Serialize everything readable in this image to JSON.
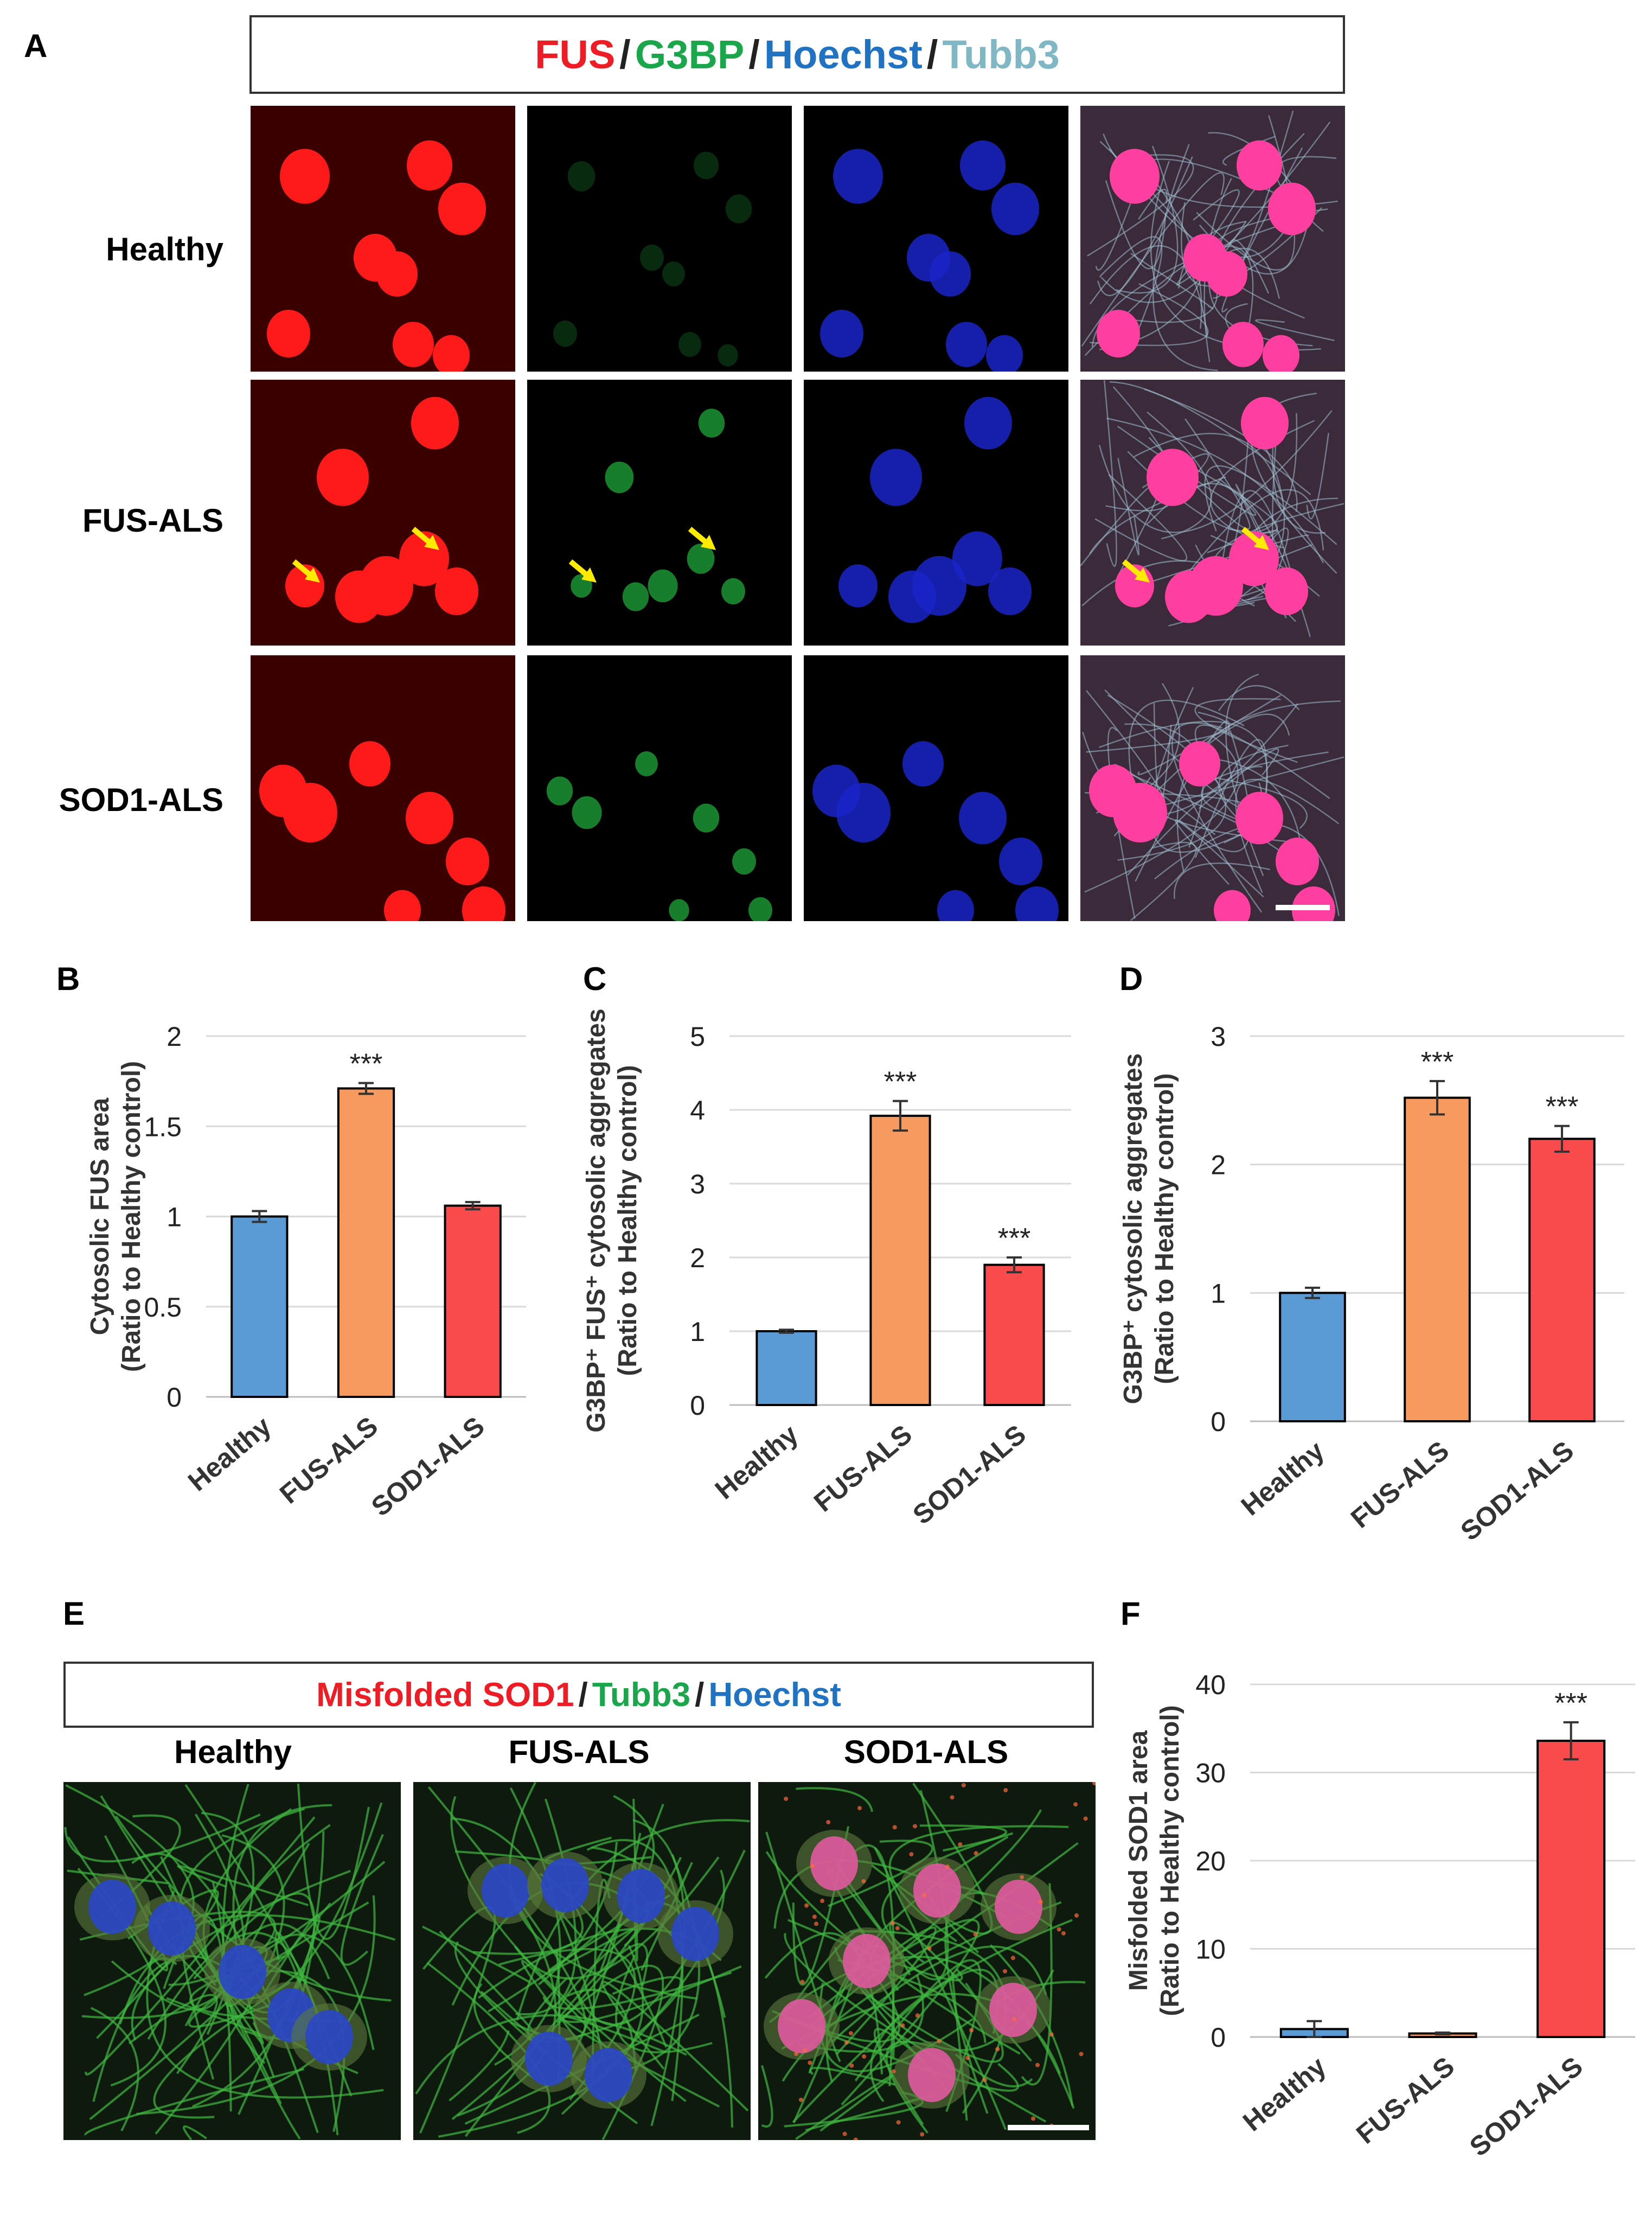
{
  "panels": {
    "a": "A",
    "b": "B",
    "c": "C",
    "d": "D",
    "e": "E",
    "f": "F"
  },
  "legend_a": {
    "fus": "FUS",
    "g3bp": "G3BP",
    "hoechst": "Hoechst",
    "tubb3": "Tubb3",
    "sep": "/",
    "colors": {
      "fus": "#ee1c24",
      "g3bp": "#1aa64a",
      "hoechst": "#1f73c2",
      "tubb3": "#7fb8c4",
      "sep": "#222222"
    }
  },
  "legend_e": {
    "misfolded": "Misfolded SOD1",
    "tubb3": "Tubb3",
    "hoechst": "Hoechst",
    "sep": "/",
    "colors": {
      "misfolded": "#ee1c24",
      "tubb3": "#1aa64a",
      "hoechst": "#1f73c2",
      "sep": "#222222"
    }
  },
  "rows": [
    "Healthy",
    "FUS-ALS",
    "SOD1-ALS"
  ],
  "colors": {
    "healthy": "#5b9bd5",
    "fus_als": "#f79a5f",
    "sod1_als": "#f94b4b"
  },
  "chart_data": [
    {
      "id": "B",
      "type": "bar",
      "categories": [
        "Healthy",
        "FUS-ALS",
        "SOD1-ALS"
      ],
      "values": [
        1.0,
        1.71,
        1.06
      ],
      "errors": [
        0.03,
        0.03,
        0.02
      ],
      "significance": [
        "",
        "***",
        ""
      ],
      "ylabel_lines": [
        "Cytosolic FUS area",
        "(Ratio to Healthy control)"
      ],
      "ylim": [
        0,
        2
      ],
      "ticks": [
        0,
        0.5,
        1,
        1.5,
        2
      ],
      "tick_labels": [
        "0",
        "0.5",
        "1",
        "1.5",
        "2"
      ]
    },
    {
      "id": "C",
      "type": "bar",
      "categories": [
        "Healthy",
        "FUS-ALS",
        "SOD1-ALS"
      ],
      "values": [
        1.0,
        3.92,
        1.9
      ],
      "errors": [
        0.02,
        0.2,
        0.1
      ],
      "significance": [
        "",
        "***",
        "***"
      ],
      "ylabel_lines": [
        "G3BP⁺ FUS⁺ cytosolic aggregates",
        "(Ratio to Healthy control)"
      ],
      "ylim": [
        0,
        5
      ],
      "ticks": [
        0,
        1,
        2,
        3,
        4,
        5
      ],
      "tick_labels": [
        "0",
        "1",
        "2",
        "3",
        "4",
        "5"
      ]
    },
    {
      "id": "D",
      "type": "bar",
      "categories": [
        "Healthy",
        "FUS-ALS",
        "SOD1-ALS"
      ],
      "values": [
        1.0,
        2.52,
        2.2
      ],
      "errors": [
        0.04,
        0.13,
        0.1
      ],
      "significance": [
        "",
        "***",
        "***"
      ],
      "ylabel_lines": [
        "G3BP⁺ cytosolic aggregates",
        "(Ratio to Healthy control)"
      ],
      "ylim": [
        0,
        3
      ],
      "ticks": [
        0,
        1,
        2,
        3
      ],
      "tick_labels": [
        "0",
        "1",
        "2",
        "3"
      ]
    },
    {
      "id": "F",
      "type": "bar",
      "categories": [
        "Healthy",
        "FUS-ALS",
        "SOD1-ALS"
      ],
      "values": [
        0.9,
        0.4,
        33.6
      ],
      "errors": [
        0.9,
        0.1,
        2.1
      ],
      "significance": [
        "",
        "",
        "***"
      ],
      "ylabel_lines": [
        "Misfolded SOD1 area",
        "(Ratio to Healthy control)"
      ],
      "ylim": [
        0,
        40
      ],
      "ticks": [
        0,
        10,
        20,
        30,
        40
      ],
      "tick_labels": [
        "0",
        "10",
        "20",
        "30",
        "40"
      ]
    }
  ]
}
